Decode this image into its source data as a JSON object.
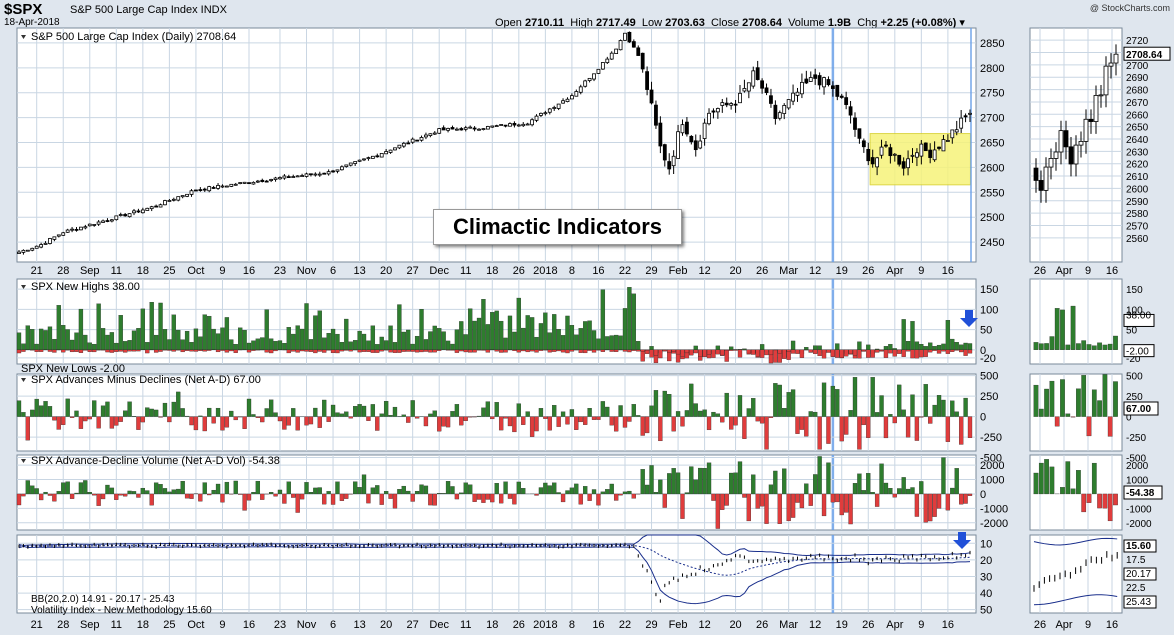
{
  "header": {
    "symbol": "$SPX",
    "description": "S&P 500 Large Cap Index INDX",
    "date": "18-Apr-2018",
    "credit": "@ StockCharts.com",
    "open_label": "Open",
    "open": "2710.11",
    "high_label": "High",
    "high": "2717.49",
    "low_label": "Low",
    "low": "2703.63",
    "close_label": "Close",
    "close": "2708.64",
    "volume_label": "Volume",
    "volume": "1.9B",
    "chg_label": "Chg",
    "chg": "+2.25 (+0.08%)"
  },
  "overlay_label": "Climactic Indicators",
  "colors": {
    "positive": "#2e7d2e",
    "negative": "#e03c3c",
    "panel": "#ffffff",
    "grid": "#c9d6e3",
    "highlight": "#f6f37a",
    "marker_line": "#6aa0e8",
    "arrow": "#2050d8",
    "bb": "#1a2f8c"
  },
  "chart_data": [
    {
      "panel": "main",
      "type": "candlestick",
      "title": "S&P 500 Large Cap Index (Daily) 2708.64",
      "ylim": [
        2410,
        2880
      ],
      "yticks": [
        2450,
        2500,
        2550,
        2600,
        2650,
        2700,
        2750,
        2800,
        2850
      ],
      "xticks": [
        "21",
        "28",
        "Sep",
        "11",
        "18",
        "25",
        "Oct",
        "9",
        "16",
        "23",
        "Nov",
        "6",
        "13",
        "20",
        "27",
        "Dec",
        "11",
        "18",
        "26",
        "2018",
        "8",
        "16",
        "22",
        "29",
        "Feb",
        "12",
        "20",
        "26",
        "Mar",
        "12",
        "19",
        "26",
        "Apr",
        "9",
        "16"
      ],
      "waypoints": [
        [
          0,
          2430
        ],
        [
          5,
          2445
        ],
        [
          10,
          2470
        ],
        [
          20,
          2495
        ],
        [
          30,
          2520
        ],
        [
          40,
          2555
        ],
        [
          50,
          2568
        ],
        [
          60,
          2580
        ],
        [
          70,
          2590
        ],
        [
          80,
          2622
        ],
        [
          85,
          2640
        ],
        [
          95,
          2675
        ],
        [
          105,
          2680
        ],
        [
          115,
          2690
        ],
        [
          125,
          2745
        ],
        [
          130,
          2790
        ],
        [
          135,
          2840
        ],
        [
          137,
          2870
        ],
        [
          140,
          2825
        ],
        [
          142,
          2760
        ],
        [
          145,
          2640
        ],
        [
          147,
          2600
        ],
        [
          150,
          2695
        ],
        [
          153,
          2640
        ],
        [
          156,
          2710
        ],
        [
          160,
          2725
        ],
        [
          163,
          2740
        ],
        [
          166,
          2785
        ],
        [
          168,
          2760
        ],
        [
          171,
          2700
        ],
        [
          174,
          2730
        ],
        [
          177,
          2760
        ],
        [
          180,
          2780
        ],
        [
          183,
          2765
        ],
        [
          186,
          2735
        ],
        [
          188,
          2705
        ],
        [
          190,
          2650
        ],
        [
          193,
          2610
        ],
        [
          196,
          2640
        ],
        [
          200,
          2605
        ],
        [
          203,
          2640
        ],
        [
          206,
          2630
        ],
        [
          210,
          2660
        ],
        [
          213,
          2690
        ],
        [
          215,
          2708.64
        ]
      ],
      "last_value": "2708.64",
      "right_inset": {
        "yticks": [
          2560,
          2570,
          2580,
          2590,
          2600,
          2610,
          2620,
          2630,
          2640,
          2650,
          2660,
          2670,
          2680,
          2690,
          2700,
          2710,
          2720
        ],
        "xticks": [
          "26",
          "Apr",
          "9",
          "16"
        ],
        "last_value": "2708.64"
      }
    },
    {
      "panel": "new_highs_lows",
      "type": "bar",
      "labels": [
        "SPX New Highs 38.00",
        "SPX New Lows -2.00"
      ],
      "ylim": [
        -35,
        175
      ],
      "yticks": [
        150,
        100,
        50,
        0,
        -20
      ],
      "inset_ticks": [
        "38.00",
        "-2.00",
        "-20"
      ],
      "highs_last": 38,
      "lows_last": -2
    },
    {
      "panel": "advances_minus_declines",
      "type": "bar",
      "label": "SPX Advances Minus Declines (Net A-D) 67.00",
      "ylim": [
        -420,
        520
      ],
      "yticks": [
        500,
        250,
        0,
        -250,
        -500
      ],
      "last": 67
    },
    {
      "panel": "advance_decline_volume",
      "type": "bar",
      "label": "SPX Advance-Decline Volume (Net A-D Vol) -54.38",
      "ylim": [
        -2500,
        2700
      ],
      "yticks": [
        2000,
        1000,
        0,
        -1000,
        -2000
      ],
      "last": -54.38
    },
    {
      "panel": "vix",
      "type": "line",
      "labels": [
        "BB(20,2.0) 14.91 - 20.17 - 25.43",
        "Volatility Index - New Methodology 15.60"
      ],
      "yticks": [
        10,
        20,
        30,
        40,
        50
      ],
      "inverted": true,
      "ylim": [
        5,
        52
      ],
      "bb_upper": 14.91,
      "bb_mid": 20.17,
      "bb_lower": 25.43,
      "last": 15.6,
      "inset_ticks": [
        "15.60",
        "17.5",
        "20.17",
        "22.5",
        "25.43"
      ]
    }
  ]
}
